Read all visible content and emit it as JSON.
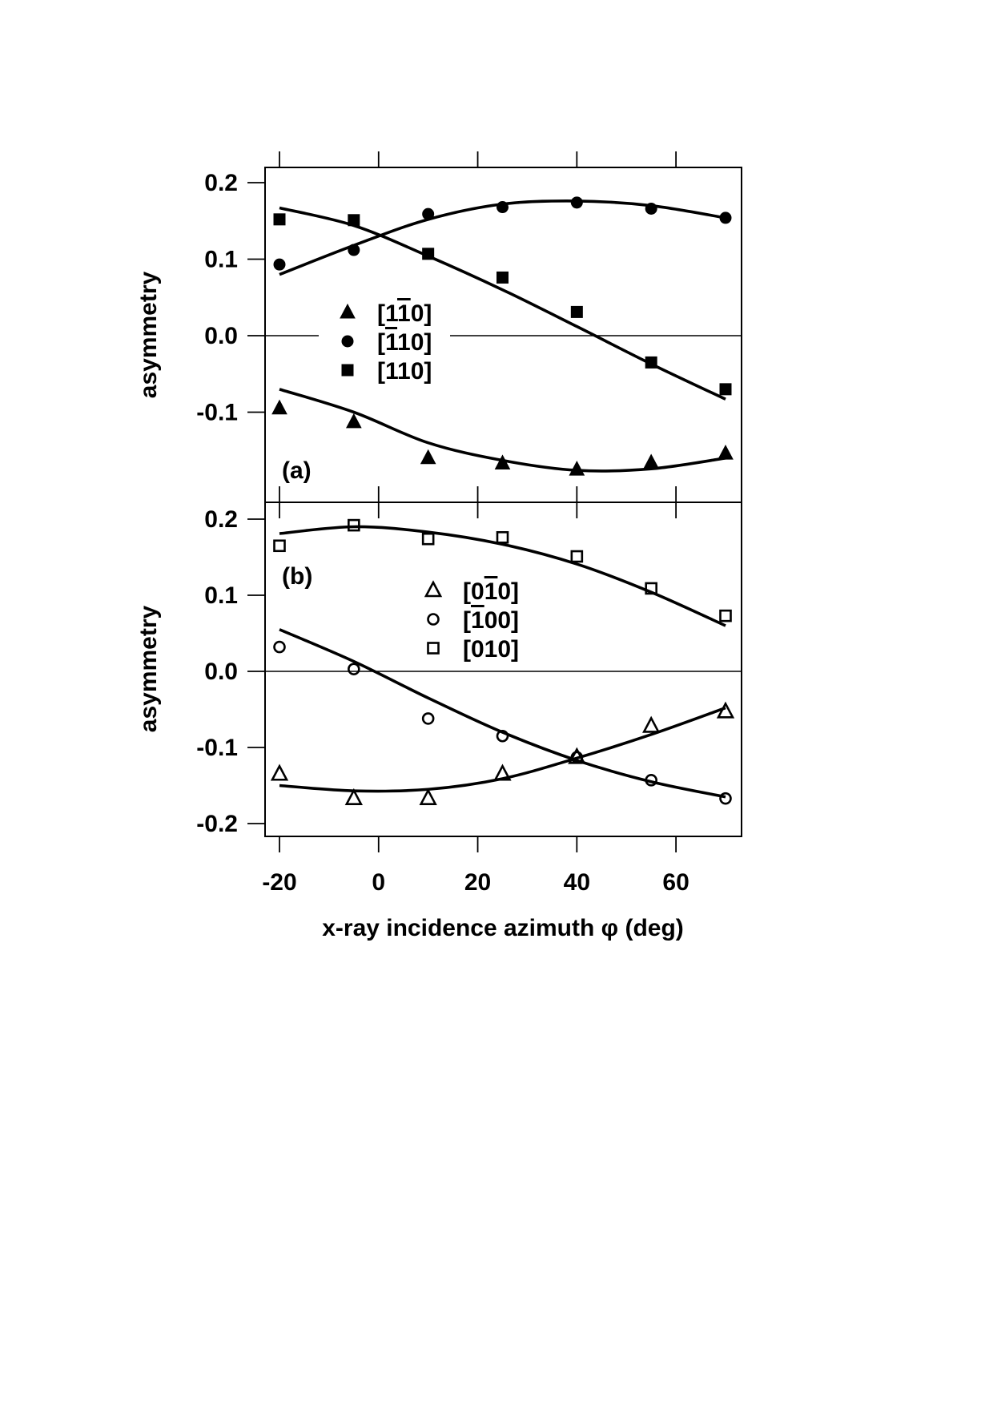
{
  "chart_data": [
    {
      "type": "scatter",
      "panel_label": "(a)",
      "xlabel": "",
      "ylabel": "asymmetry",
      "xlim": [
        -23,
        73
      ],
      "ylim": [
        -0.185,
        0.22
      ],
      "x_ticks": [
        -20,
        0,
        20,
        40,
        60
      ],
      "y_ticks": [
        0.2,
        0.1,
        0.0,
        -0.1
      ],
      "y_tick_labels": [
        "0.2",
        "0.1",
        "0.0",
        "-0.1"
      ],
      "zero_line": true,
      "legend_position": "center-left",
      "series": [
        {
          "name": "[1̄ 0]",
          "label_parts": [
            "[1",
            "1",
            "0]"
          ],
          "marker": "triangle-filled",
          "x": [
            -20,
            -5,
            10,
            25,
            40,
            55,
            70
          ],
          "y": [
            -0.095,
            -0.113,
            -0.16,
            -0.167,
            -0.175,
            -0.166,
            -0.154
          ],
          "fit_x": [
            -20,
            -5,
            10,
            25,
            40,
            55,
            70
          ],
          "fit_y": [
            -0.07,
            -0.1,
            -0.14,
            -0.163,
            -0.176,
            -0.174,
            -0.16
          ]
        },
        {
          "name": "[110] bar",
          "label_parts": [
            "[",
            "1",
            "10]"
          ],
          "marker": "circle-filled",
          "x": [
            -20,
            -5,
            10,
            25,
            40,
            55,
            70
          ],
          "y": [
            0.093,
            0.112,
            0.159,
            0.168,
            0.174,
            0.166,
            0.154
          ],
          "fit_x": [
            -20,
            -5,
            10,
            25,
            40,
            55,
            70
          ],
          "fit_y": [
            0.08,
            0.118,
            0.152,
            0.172,
            0.176,
            0.17,
            0.154
          ]
        },
        {
          "name": "[110]",
          "label_parts": [
            "[110]"
          ],
          "marker": "square-filled",
          "x": [
            -20,
            -5,
            10,
            25,
            40,
            55,
            70
          ],
          "y": [
            0.152,
            0.151,
            0.107,
            0.076,
            0.031,
            -0.035,
            -0.07
          ],
          "fit_x": [
            -20,
            -5,
            10,
            25,
            40,
            55,
            70
          ],
          "fit_y": [
            0.167,
            0.144,
            0.104,
            0.06,
            0.012,
            -0.037,
            -0.083
          ]
        }
      ]
    },
    {
      "type": "scatter",
      "panel_label": "(b)",
      "xlabel": "x-ray incidence azimuth φ  (deg)",
      "ylabel": "asymmetry",
      "xlim": [
        -23,
        73
      ],
      "ylim": [
        -0.22,
        0.22
      ],
      "x_ticks": [
        -20,
        0,
        20,
        40,
        60
      ],
      "x_tick_labels": [
        "-20",
        "0",
        "20",
        "40",
        "60"
      ],
      "y_ticks": [
        0.2,
        0.1,
        0.0,
        -0.1,
        -0.2
      ],
      "y_tick_labels": [
        "0.2",
        "0.1",
        "0.0",
        "-0.1",
        "-0.2"
      ],
      "zero_line": true,
      "legend_position": "top-center",
      "series": [
        {
          "name": "[0̅1̅0]",
          "label_parts": [
            "[0",
            "1",
            "0]"
          ],
          "marker": "triangle-open",
          "x": [
            -20,
            -5,
            10,
            25,
            40,
            55,
            70
          ],
          "y": [
            -0.135,
            -0.167,
            -0.167,
            -0.135,
            -0.113,
            -0.072,
            -0.053
          ],
          "fit_x": [
            -20,
            -5,
            10,
            25,
            40,
            55,
            70
          ],
          "fit_y": [
            -0.15,
            -0.157,
            -0.155,
            -0.141,
            -0.114,
            -0.083,
            -0.048
          ]
        },
        {
          "name": "[1̅ 00]",
          "label_parts": [
            "[",
            "1",
            "00]"
          ],
          "marker": "circle-open",
          "x": [
            -20,
            -5,
            10,
            25,
            40,
            55,
            70
          ],
          "y": [
            0.032,
            0.003,
            -0.062,
            -0.085,
            -0.113,
            -0.143,
            -0.167
          ],
          "fit_x": [
            -20,
            -5,
            10,
            25,
            40,
            55,
            70
          ],
          "fit_y": [
            0.055,
            0.013,
            -0.035,
            -0.08,
            -0.117,
            -0.145,
            -0.165
          ]
        },
        {
          "name": "[010]",
          "label_parts": [
            "[010]"
          ],
          "marker": "square-open",
          "x": [
            -20,
            -5,
            10,
            25,
            40,
            55,
            70
          ],
          "y": [
            0.165,
            0.192,
            0.174,
            0.176,
            0.151,
            0.109,
            0.073
          ],
          "fit_x": [
            -20,
            -5,
            10,
            25,
            40,
            55,
            70
          ],
          "fit_y": [
            0.181,
            0.19,
            0.183,
            0.167,
            0.141,
            0.104,
            0.06
          ]
        }
      ]
    }
  ]
}
